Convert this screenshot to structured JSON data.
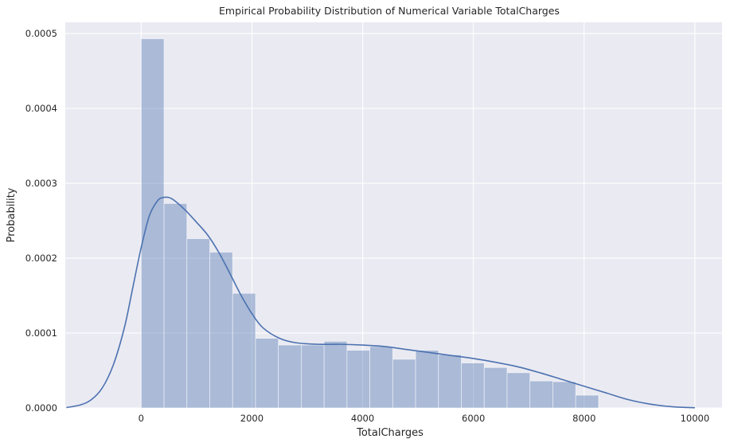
{
  "chart_data": {
    "type": "histogram",
    "title": "Empirical Probability Distribution of Numerical Variable TotalCharges",
    "xlabel": "TotalCharges",
    "ylabel": "Probability",
    "xlim": [
      -1370,
      10490
    ],
    "ylim": [
      0,
      0.000515
    ],
    "x_ticks": [
      0,
      2000,
      4000,
      6000,
      8000,
      10000
    ],
    "y_ticks": [
      0.0,
      0.0001,
      0.0002,
      0.0003,
      0.0004,
      0.0005
    ],
    "y_tick_labels": [
      "0.0000",
      "0.0001",
      "0.0002",
      "0.0003",
      "0.0004",
      "0.0005"
    ],
    "grid": true,
    "background_color": "#eaeaf2",
    "bar_color": "#4c72b0",
    "bar_opacity": 0.4,
    "line_color": "#4c72b0",
    "bins": {
      "start": 0,
      "width": 413,
      "values": [
        0.000493,
        0.000273,
        0.000226,
        0.000208,
        0.000153,
        9.3e-05,
        8.4e-05,
        8.4e-05,
        8.9e-05,
        7.7e-05,
        8.2e-05,
        6.5e-05,
        7.7e-05,
        7.1e-05,
        6e-05,
        5.4e-05,
        4.7e-05,
        3.6e-05,
        3.5e-05,
        1.7e-05
      ]
    },
    "kde": {
      "x": [
        -1350,
        -1100,
        -900,
        -700,
        -500,
        -300,
        -150,
        0,
        150,
        300,
        400,
        500,
        600,
        800,
        1000,
        1200,
        1400,
        1600,
        1800,
        2000,
        2200,
        2500,
        2800,
        3200,
        3600,
        4000,
        4400,
        4800,
        5200,
        5600,
        6000,
        6400,
        6800,
        7200,
        7600,
        8000,
        8400,
        8800,
        9200,
        9600,
        10000
      ],
      "y": [
        5e-07,
        4e-06,
        1.1e-05,
        2.7e-05,
        5.8e-05,
        0.000108,
        0.000161,
        0.000214,
        0.000257,
        0.000277,
        0.000281,
        0.000281,
        0.000277,
        0.000264,
        0.000248,
        0.000231,
        0.000208,
        0.00018,
        0.000151,
        0.000126,
        0.000107,
        9.3e-05,
        8.7e-05,
        8.5e-05,
        8.5e-05,
        8.4e-05,
        8.2e-05,
        7.8e-05,
        7.4e-05,
        7e-05,
        6.6e-05,
        6.1e-05,
        5.5e-05,
        4.7e-05,
        3.8e-05,
        2.9e-05,
        2e-05,
        1.1e-05,
        5e-06,
        1.5e-06,
        3e-07
      ]
    }
  }
}
